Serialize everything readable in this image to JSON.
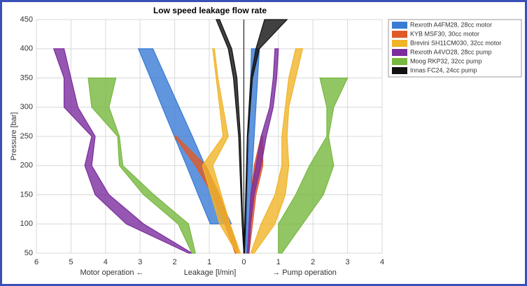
{
  "chart_data": {
    "type": "band",
    "title": "Low speed leakage flow rate",
    "ylabel": "Pressure [bar]",
    "xlabel": {
      "left": "Motor operation ←",
      "center": "Leakage [l/min]",
      "right": "→ Pump operation"
    },
    "xlim": [
      -6,
      4
    ],
    "xticks": [
      {
        "value": -6,
        "label": "6"
      },
      {
        "value": -5,
        "label": "5"
      },
      {
        "value": -4,
        "label": "4"
      },
      {
        "value": -3,
        "label": "3"
      },
      {
        "value": -2,
        "label": "2"
      },
      {
        "value": -1,
        "label": "1"
      },
      0,
      1,
      2,
      3,
      4
    ],
    "ylim": [
      50,
      450
    ],
    "yticks": [
      50,
      100,
      150,
      200,
      250,
      300,
      350,
      400,
      450
    ],
    "grid": true,
    "legend": "right",
    "series": [
      {
        "name": "Rexroth A4FM28, 28cc motor",
        "color": "#3a7bd5",
        "motor": {
          "pressure": [
            100,
            150,
            200,
            250,
            300,
            350,
            400
          ],
          "low": [
            -0.97,
            -1.32,
            -1.66,
            -2.01,
            -2.36,
            -2.7,
            -3.05
          ],
          "high": [
            -0.36,
            -0.74,
            -1.12,
            -1.49,
            -1.87,
            -2.25,
            -2.63
          ]
        },
        "pump": {
          "pressure": [
            50,
            100,
            150,
            200,
            250,
            300,
            350,
            400
          ],
          "low": [
            0.05,
            0.07,
            0.09,
            0.12,
            0.15,
            0.18,
            0.2,
            0.22
          ],
          "high": [
            0.1,
            0.15,
            0.2,
            0.25,
            0.3,
            0.35,
            0.4,
            0.45
          ]
        }
      },
      {
        "name": "KYB MSF30, 30cc motor",
        "color": "#e05a28",
        "motor": {
          "pressure": [
            50,
            100,
            150,
            200,
            250
          ],
          "low": [
            -0.25,
            -0.55,
            -0.9,
            -1.4,
            -2.0
          ],
          "high": [
            -0.15,
            -0.4,
            -0.7,
            -1.1,
            -1.95
          ]
        },
        "pump": {
          "pressure": [
            50,
            100,
            150,
            200,
            250
          ],
          "low": [
            0.1,
            0.15,
            0.2,
            0.3,
            0.5
          ],
          "high": [
            0.15,
            0.25,
            0.35,
            0.55,
            0.55
          ]
        }
      },
      {
        "name": "Brevini SH11CM030, 32cc motor",
        "color": "#f0b429",
        "motor": {
          "pressure": [
            50,
            100,
            150,
            200,
            250,
            300,
            350,
            400
          ],
          "low": [
            -0.2,
            -0.7,
            -0.95,
            -1.2,
            -0.6,
            -0.7,
            -0.8,
            -0.9
          ],
          "high": [
            -0.1,
            -0.4,
            -0.65,
            -0.9,
            -0.45,
            -0.6,
            -0.75,
            -0.85
          ]
        },
        "pump": {
          "pressure": [
            50,
            100,
            150,
            200,
            250,
            300,
            350,
            400
          ],
          "low": [
            0.2,
            0.5,
            0.9,
            1.1,
            1.1,
            1.2,
            1.3,
            1.5
          ],
          "high": [
            0.3,
            0.9,
            1.2,
            1.3,
            1.25,
            1.3,
            1.5,
            1.7
          ]
        }
      },
      {
        "name": "Rexroth A4VO28, 28cc pump",
        "color": "#7b2d9e",
        "motor": {
          "pressure": [
            50,
            100,
            150,
            200,
            250,
            300,
            350,
            400
          ],
          "low": [
            -1.6,
            -3.4,
            -4.3,
            -4.6,
            -4.4,
            -5.2,
            -5.2,
            -5.5
          ],
          "high": [
            -1.5,
            -2.9,
            -3.9,
            -4.4,
            -4.3,
            -4.8,
            -5.0,
            -5.2
          ]
        },
        "pump": {
          "pressure": [
            50,
            100,
            150,
            200,
            250,
            300,
            350,
            400
          ],
          "low": [
            0.1,
            0.15,
            0.2,
            0.35,
            0.5,
            0.75,
            0.85,
            0.9
          ],
          "high": [
            0.15,
            0.2,
            0.3,
            0.5,
            0.65,
            0.85,
            0.95,
            1.0
          ]
        }
      },
      {
        "name": "Moog RKP32, 32cc pump",
        "color": "#77b83e",
        "motor": {
          "pressure": [
            50,
            100,
            150,
            200,
            250,
            300,
            350
          ],
          "low": [
            -1.5,
            -1.9,
            -2.9,
            -3.6,
            -3.65,
            -4.4,
            -4.5
          ],
          "high": [
            -1.4,
            -1.6,
            -2.6,
            -3.5,
            -3.6,
            -3.9,
            -3.7
          ]
        },
        "pump": {
          "pressure": [
            50,
            100,
            150,
            200,
            250,
            300,
            350
          ],
          "low": [
            1.0,
            1.0,
            1.5,
            1.9,
            2.4,
            2.4,
            2.2
          ],
          "high": [
            1.1,
            1.7,
            2.3,
            2.6,
            2.45,
            2.6,
            3.0
          ]
        }
      },
      {
        "name": "Innas FC24, 24cc pump",
        "color": "#111111",
        "motor": {
          "pressure": [
            50,
            100,
            250,
            350,
            400,
            450
          ],
          "low": [
            0,
            -0.05,
            -0.15,
            -0.3,
            -0.45,
            -0.8
          ],
          "high": [
            0,
            -0.03,
            -0.1,
            -0.2,
            -0.35,
            -0.7
          ]
        },
        "pump": {
          "pressure": [
            50,
            100,
            250,
            350,
            400,
            450
          ],
          "low": [
            0,
            0.03,
            0.1,
            0.2,
            0.35,
            0.6
          ],
          "high": [
            0.02,
            0.05,
            0.12,
            0.25,
            0.45,
            1.25
          ]
        }
      }
    ]
  }
}
